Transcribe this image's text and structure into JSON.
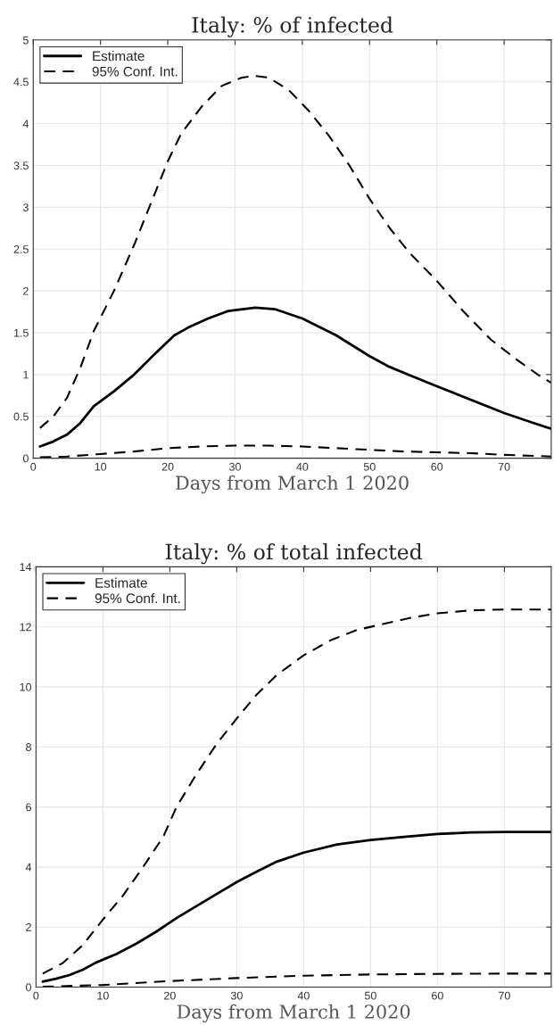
{
  "chart_data": [
    {
      "type": "line",
      "title": "Italy: % of infected",
      "xlabel": "Days from March 1 2020",
      "xlim": [
        0,
        77
      ],
      "xticks": [
        0,
        10,
        20,
        30,
        40,
        50,
        60,
        70
      ],
      "ylim": [
        0,
        5
      ],
      "yticks": [
        0,
        0.5,
        1,
        1.5,
        2,
        2.5,
        3,
        3.5,
        4,
        4.5,
        5
      ],
      "grid": true,
      "legend": "top left",
      "series": [
        {
          "name": "Estimate",
          "color": "#000000",
          "line_style": "solid",
          "x": [
            1,
            3,
            5,
            7,
            9,
            12,
            15,
            18,
            21,
            23,
            26,
            29,
            33,
            36,
            40,
            45,
            50,
            53,
            56,
            60,
            65,
            70,
            74,
            77
          ],
          "values": [
            0.14,
            0.2,
            0.28,
            0.42,
            0.62,
            0.8,
            1.0,
            1.24,
            1.47,
            1.56,
            1.67,
            1.76,
            1.8,
            1.78,
            1.67,
            1.47,
            1.22,
            1.09,
            0.99,
            0.86,
            0.7,
            0.54,
            0.43,
            0.35
          ]
        },
        {
          "name": "95% Conf. Int.",
          "color": "#000000",
          "line_style": "dashed",
          "x": [
            1,
            3,
            5,
            7,
            9,
            12,
            15,
            18,
            20,
            22,
            25,
            28,
            31,
            33,
            35,
            38,
            41,
            44,
            47,
            50,
            53,
            56,
            60,
            64,
            68,
            72,
            75,
            77
          ],
          "values": [
            0.36,
            0.5,
            0.72,
            1.08,
            1.52,
            2.0,
            2.55,
            3.15,
            3.55,
            3.88,
            4.2,
            4.45,
            4.55,
            4.57,
            4.55,
            4.4,
            4.15,
            3.85,
            3.5,
            3.1,
            2.75,
            2.45,
            2.12,
            1.75,
            1.42,
            1.17,
            1.0,
            0.9
          ]
        },
        {
          "color": "#000000",
          "line_style": "dashed",
          "x": [
            1,
            5,
            10,
            15,
            20,
            25,
            30,
            35,
            40,
            45,
            50,
            55,
            60,
            65,
            70,
            77
          ],
          "values": [
            0.01,
            0.02,
            0.05,
            0.08,
            0.12,
            0.14,
            0.15,
            0.15,
            0.14,
            0.12,
            0.1,
            0.08,
            0.07,
            0.06,
            0.04,
            0.02
          ]
        }
      ]
    },
    {
      "type": "line",
      "title": "Italy: % of total infected",
      "xlabel": "Days from March 1 2020",
      "xlim": [
        0,
        77
      ],
      "xticks": [
        0,
        10,
        20,
        30,
        40,
        50,
        60,
        70
      ],
      "ylim": [
        0,
        14
      ],
      "yticks": [
        0,
        2,
        4,
        6,
        8,
        10,
        12,
        14
      ],
      "grid": true,
      "legend": "top left",
      "series": [
        {
          "name": "Estimate",
          "color": "#000000",
          "line_style": "solid",
          "x": [
            1,
            3,
            5,
            7,
            9,
            12,
            15,
            18,
            21,
            24,
            27,
            30,
            33,
            36,
            40,
            45,
            50,
            55,
            60,
            65,
            70,
            77
          ],
          "values": [
            0.18,
            0.28,
            0.4,
            0.58,
            0.82,
            1.1,
            1.45,
            1.85,
            2.3,
            2.7,
            3.1,
            3.5,
            3.85,
            4.18,
            4.48,
            4.75,
            4.9,
            5.0,
            5.1,
            5.15,
            5.17,
            5.17
          ]
        },
        {
          "name": "95% Conf. Int.",
          "color": "#000000",
          "line_style": "dashed",
          "x": [
            1,
            4,
            7,
            10,
            13,
            16,
            19,
            21,
            24,
            27,
            30,
            33,
            36,
            40,
            44,
            48,
            52,
            56,
            60,
            65,
            70,
            77
          ],
          "values": [
            0.45,
            0.8,
            1.4,
            2.25,
            3.05,
            4.0,
            5.0,
            6.0,
            7.1,
            8.1,
            8.95,
            9.75,
            10.4,
            11.05,
            11.55,
            11.9,
            12.1,
            12.3,
            12.45,
            12.55,
            12.58,
            12.58
          ]
        },
        {
          "color": "#000000",
          "line_style": "dashed",
          "x": [
            1,
            10,
            20,
            30,
            40,
            50,
            60,
            70,
            77
          ],
          "values": [
            0.01,
            0.07,
            0.2,
            0.3,
            0.38,
            0.42,
            0.44,
            0.45,
            0.45
          ]
        }
      ]
    }
  ]
}
